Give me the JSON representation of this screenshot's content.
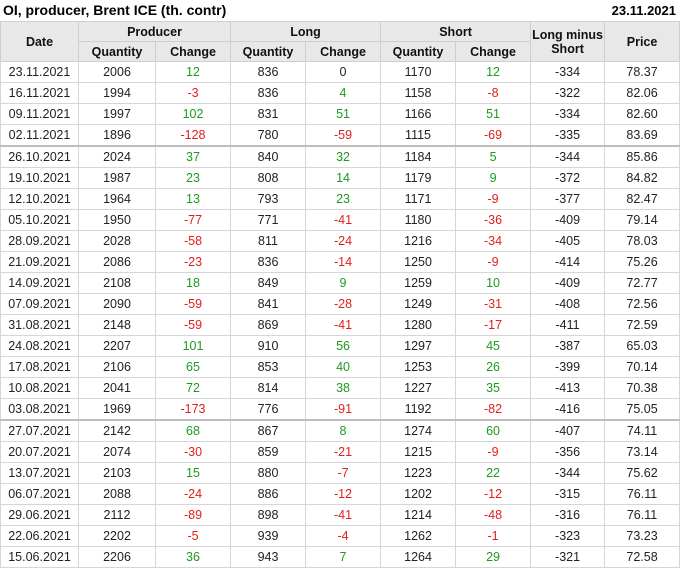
{
  "title": "OI, producer, Brent ICE (th. contr)",
  "report_date": "23.11.2021",
  "colors": {
    "positive": "#1f9a1f",
    "negative": "#e0201c",
    "header_bg": "#e8e8e8"
  },
  "headers": {
    "date": "Date",
    "producer": "Producer",
    "long": "Long",
    "short": "Short",
    "long_minus_short": "Long minus Short",
    "price": "Price",
    "quantity": "Quantity",
    "change": "Change"
  },
  "rows": [
    [
      "23.11.2021",
      "2006",
      "12",
      "836",
      "0",
      "1170",
      "12",
      "-334",
      "78.37"
    ],
    [
      "16.11.2021",
      "1994",
      "-3",
      "836",
      "4",
      "1158",
      "-8",
      "-322",
      "82.06"
    ],
    [
      "09.11.2021",
      "1997",
      "102",
      "831",
      "51",
      "1166",
      "51",
      "-334",
      "82.60"
    ],
    [
      "02.11.2021",
      "1896",
      "-128",
      "780",
      "-59",
      "1115",
      "-69",
      "-335",
      "83.69"
    ],
    [
      "26.10.2021",
      "2024",
      "37",
      "840",
      "32",
      "1184",
      "5",
      "-344",
      "85.86"
    ],
    [
      "19.10.2021",
      "1987",
      "23",
      "808",
      "14",
      "1179",
      "9",
      "-372",
      "84.82"
    ],
    [
      "12.10.2021",
      "1964",
      "13",
      "793",
      "23",
      "1171",
      "-9",
      "-377",
      "82.47"
    ],
    [
      "05.10.2021",
      "1950",
      "-77",
      "771",
      "-41",
      "1180",
      "-36",
      "-409",
      "79.14"
    ],
    [
      "28.09.2021",
      "2028",
      "-58",
      "811",
      "-24",
      "1216",
      "-34",
      "-405",
      "78.03"
    ],
    [
      "21.09.2021",
      "2086",
      "-23",
      "836",
      "-14",
      "1250",
      "-9",
      "-414",
      "75.26"
    ],
    [
      "14.09.2021",
      "2108",
      "18",
      "849",
      "9",
      "1259",
      "10",
      "-409",
      "72.77"
    ],
    [
      "07.09.2021",
      "2090",
      "-59",
      "841",
      "-28",
      "1249",
      "-31",
      "-408",
      "72.56"
    ],
    [
      "31.08.2021",
      "2148",
      "-59",
      "869",
      "-41",
      "1280",
      "-17",
      "-411",
      "72.59"
    ],
    [
      "24.08.2021",
      "2207",
      "101",
      "910",
      "56",
      "1297",
      "45",
      "-387",
      "65.03"
    ],
    [
      "17.08.2021",
      "2106",
      "65",
      "853",
      "40",
      "1253",
      "26",
      "-399",
      "70.14"
    ],
    [
      "10.08.2021",
      "2041",
      "72",
      "814",
      "38",
      "1227",
      "35",
      "-413",
      "70.38"
    ],
    [
      "03.08.2021",
      "1969",
      "-173",
      "776",
      "-91",
      "1192",
      "-82",
      "-416",
      "75.05"
    ],
    [
      "27.07.2021",
      "2142",
      "68",
      "867",
      "8",
      "1274",
      "60",
      "-407",
      "74.11"
    ],
    [
      "20.07.2021",
      "2074",
      "-30",
      "859",
      "-21",
      "1215",
      "-9",
      "-356",
      "73.14"
    ],
    [
      "13.07.2021",
      "2103",
      "15",
      "880",
      "-7",
      "1223",
      "22",
      "-344",
      "75.62"
    ],
    [
      "06.07.2021",
      "2088",
      "-24",
      "886",
      "-12",
      "1202",
      "-12",
      "-315",
      "76.11"
    ],
    [
      "29.06.2021",
      "2112",
      "-89",
      "898",
      "-41",
      "1214",
      "-48",
      "-316",
      "76.11"
    ],
    [
      "22.06.2021",
      "2202",
      "-5",
      "939",
      "-4",
      "1262",
      "-1",
      "-323",
      "73.23"
    ],
    [
      "15.06.2021",
      "2206",
      "36",
      "943",
      "7",
      "1264",
      "29",
      "-321",
      "72.58"
    ]
  ]
}
